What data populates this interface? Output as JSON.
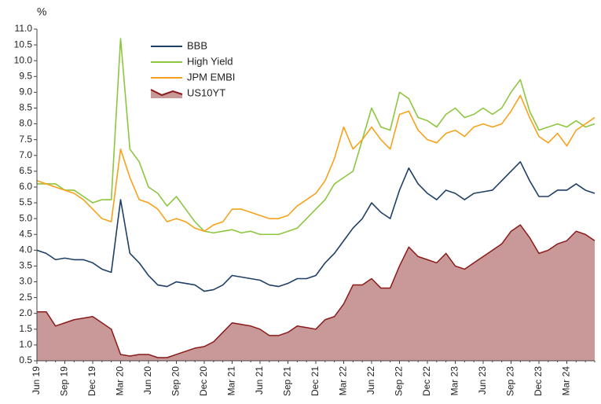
{
  "chart_data": {
    "type": "line",
    "y_label": "%",
    "categories": [
      "Jun 19",
      null,
      null,
      "Sep 19",
      null,
      null,
      "Dec 19",
      null,
      null,
      "Mar 20",
      null,
      null,
      "Jun 20",
      null,
      null,
      "Sep 20",
      null,
      null,
      "Dec 20",
      null,
      null,
      "Mar 21",
      null,
      null,
      "Jun 21",
      null,
      null,
      "Sep 21",
      null,
      null,
      "Dec 21",
      null,
      null,
      "Mar 22",
      null,
      null,
      "Jun 22",
      null,
      null,
      "Sep 22",
      null,
      null,
      "Dec 22",
      null,
      null,
      "Mar 23",
      null,
      null,
      "Jun 23",
      null,
      null,
      "Sep 23",
      null,
      null,
      "Dec 23",
      null,
      null,
      "Mar 24",
      null,
      null,
      null
    ],
    "ylim": [
      0.5,
      11.0
    ],
    "yticks": [
      0.5,
      {
        "value": 1,
        "label": "1.0"
      },
      1.5,
      {
        "value": 2,
        "label": "2.0"
      },
      2.5,
      {
        "value": 3,
        "label": "3.0"
      },
      3.5,
      {
        "value": 4,
        "label": "4.0"
      },
      4.5,
      {
        "value": 5,
        "label": "5.0"
      },
      5.5,
      {
        "value": 6,
        "label": "6.0"
      },
      6.5,
      {
        "value": 7,
        "label": "7.0"
      },
      7.5,
      {
        "value": 8,
        "label": "8.0"
      },
      8.5,
      {
        "value": 9,
        "label": "9.0"
      },
      9.5,
      {
        "value": 10,
        "label": "10.0"
      },
      10.5,
      {
        "value": 11,
        "label": "11.0"
      }
    ],
    "grid": false,
    "legend": "upper left",
    "series": [
      {
        "name": "BBB",
        "color": "#1f3f66",
        "values": [
          4.0,
          3.9,
          3.7,
          3.75,
          3.7,
          3.7,
          3.6,
          3.4,
          3.3,
          5.6,
          3.9,
          3.6,
          3.2,
          2.9,
          2.85,
          3.0,
          2.95,
          2.9,
          2.7,
          2.75,
          2.9,
          3.2,
          3.15,
          3.1,
          3.05,
          2.9,
          2.85,
          2.95,
          3.1,
          3.1,
          3.2,
          3.6,
          3.9,
          4.3,
          4.7,
          5.0,
          5.5,
          5.2,
          5.0,
          5.9,
          6.6,
          6.1,
          5.8,
          5.6,
          5.9,
          5.8,
          5.6,
          5.8,
          5.85,
          5.9,
          6.2,
          6.5,
          6.8,
          6.2,
          5.7,
          5.7,
          5.9,
          5.9,
          6.1,
          5.9,
          5.8
        ]
      },
      {
        "name": "High Yield",
        "color": "#8dc63f",
        "values": [
          6.1,
          6.1,
          6.1,
          5.9,
          5.9,
          5.7,
          5.5,
          5.6,
          5.6,
          10.7,
          7.2,
          6.8,
          6.0,
          5.8,
          5.4,
          5.7,
          5.3,
          4.9,
          4.6,
          4.55,
          4.6,
          4.65,
          4.55,
          4.6,
          4.5,
          4.5,
          4.5,
          4.6,
          4.7,
          5.0,
          5.3,
          5.6,
          6.1,
          6.3,
          6.5,
          7.5,
          8.5,
          7.9,
          7.8,
          9.0,
          8.8,
          8.2,
          8.1,
          7.9,
          8.3,
          8.5,
          8.2,
          8.3,
          8.5,
          8.3,
          8.5,
          9.0,
          9.4,
          8.4,
          7.8,
          7.9,
          8.0,
          7.9,
          8.1,
          7.9,
          8.0
        ]
      },
      {
        "name": "JPM EMBI",
        "color": "#f7a21b",
        "values": [
          6.2,
          6.1,
          6.0,
          5.9,
          5.8,
          5.6,
          5.3,
          5.0,
          4.9,
          7.2,
          6.3,
          5.6,
          5.5,
          5.3,
          4.9,
          5.0,
          4.9,
          4.7,
          4.6,
          4.8,
          4.9,
          5.3,
          5.3,
          5.2,
          5.1,
          5.0,
          5.0,
          5.1,
          5.4,
          5.6,
          5.8,
          6.2,
          6.9,
          7.9,
          7.2,
          7.5,
          7.9,
          7.5,
          7.2,
          8.3,
          8.4,
          7.8,
          7.5,
          7.4,
          7.7,
          7.8,
          7.6,
          7.9,
          8.0,
          7.9,
          8.0,
          8.4,
          8.9,
          8.2,
          7.6,
          7.4,
          7.7,
          7.3,
          7.8,
          8.0,
          8.2
        ]
      },
      {
        "name": "US10YT",
        "type": "area",
        "color": "#8b1a1a",
        "fill": "#c99999",
        "values": [
          2.05,
          2.05,
          1.6,
          1.7,
          1.8,
          1.85,
          1.9,
          1.7,
          1.5,
          0.7,
          0.65,
          0.7,
          0.7,
          0.6,
          0.6,
          0.7,
          0.8,
          0.9,
          0.95,
          1.1,
          1.4,
          1.7,
          1.65,
          1.6,
          1.5,
          1.3,
          1.3,
          1.4,
          1.6,
          1.55,
          1.5,
          1.8,
          1.9,
          2.3,
          2.9,
          2.9,
          3.1,
          2.8,
          2.8,
          3.5,
          4.1,
          3.8,
          3.7,
          3.6,
          3.9,
          3.5,
          3.4,
          3.6,
          3.8,
          4.0,
          4.2,
          4.6,
          4.8,
          4.4,
          3.9,
          4.0,
          4.2,
          4.3,
          4.6,
          4.5,
          4.3
        ]
      }
    ]
  }
}
